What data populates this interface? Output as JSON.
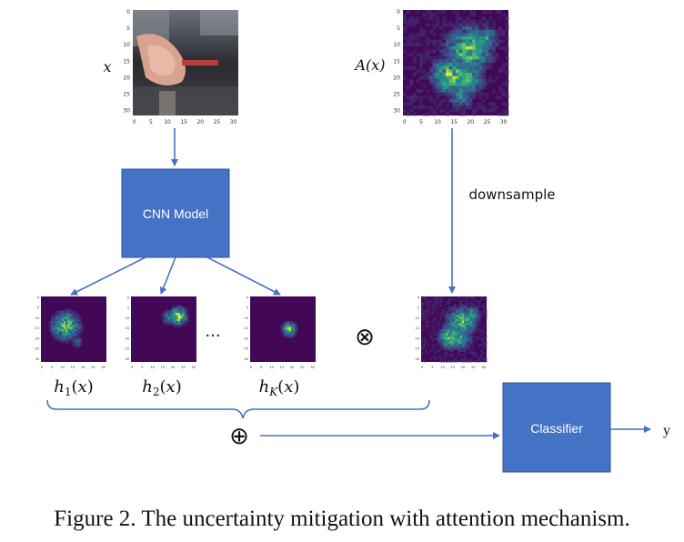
{
  "diagram": {
    "input_label": "x",
    "attention_label": "A(x)",
    "model_label": "CNN Model",
    "downsample_label": "downsample",
    "heatmap_labels": [
      "h₁(x)",
      "h₂(x)",
      "h_K(x)"
    ],
    "ellipsis": "···",
    "multiply_symbol": "⊗",
    "sum_symbol": "⊕",
    "classifier_label": "Classifier",
    "output_label": "y",
    "large_axis_ticks_x": [
      "0",
      "5",
      "10",
      "15",
      "20",
      "25",
      "30"
    ],
    "large_axis_ticks_y": [
      "0",
      "5",
      "10",
      "15",
      "20",
      "25",
      "30"
    ],
    "small_axis_ticks_x": [
      "0",
      "5",
      "10",
      "15",
      "20",
      "25",
      "30"
    ],
    "small_axis_ticks_y": [
      "0",
      "5",
      "10",
      "15",
      "20",
      "25",
      "30"
    ]
  },
  "caption": "Figure 2. The uncertainty mitigation with attention mechanism.",
  "colors": {
    "box_fill": "#4472c4",
    "arrow": "#4472c4",
    "box_text": "#ffffff",
    "heatmap_bg": "#3a0f5a"
  }
}
